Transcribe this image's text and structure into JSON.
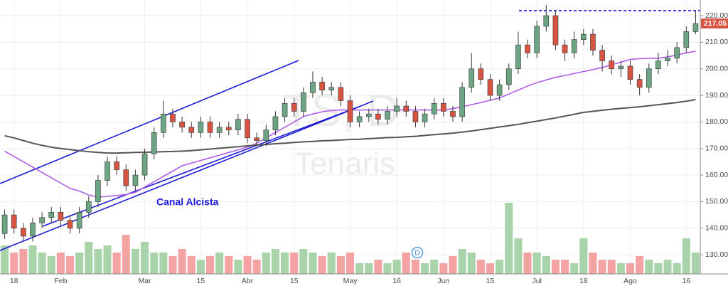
{
  "chart_data": {
    "type": "candlestick",
    "watermark_symbol": "TS, D",
    "watermark_name": "Tenaris",
    "annotation": "Canal Alcista",
    "dividend_label": "D",
    "resistance_level": 221.9,
    "up_color": "#6ba583",
    "down_color": "#d75442",
    "up_volume_color": "#a9d3a9",
    "down_volume_color": "#f4a3a3",
    "ma_short_color": "#b05ee8",
    "ma_long_color": "#555555",
    "grid": true,
    "categories": [
      null,
      "18",
      null,
      null,
      null,
      null,
      "Feb",
      null,
      null,
      null,
      null,
      null,
      null,
      null,
      null,
      "Mar",
      null,
      null,
      null,
      null,
      null,
      "15",
      null,
      null,
      null,
      null,
      "Abr",
      null,
      null,
      null,
      null,
      "15",
      null,
      null,
      null,
      null,
      null,
      "May",
      null,
      null,
      null,
      null,
      "16",
      null,
      null,
      null,
      null,
      "Jun",
      null,
      null,
      null,
      null,
      "15",
      null,
      null,
      null,
      null,
      "Jul",
      null,
      null,
      null,
      null,
      "18",
      null,
      null,
      null,
      null,
      "Ago",
      null,
      null,
      null,
      null,
      null,
      "16",
      null
    ],
    "open": [
      138,
      145,
      140,
      137,
      142,
      144,
      146,
      143,
      140,
      146,
      150,
      158,
      165,
      162,
      156,
      160,
      168,
      176,
      183,
      180,
      178,
      176,
      180,
      176,
      178,
      177,
      181,
      174,
      173,
      177,
      182,
      187,
      184,
      191,
      195,
      192,
      193,
      188,
      180,
      182,
      183,
      181,
      184,
      186,
      184,
      180,
      183,
      187,
      184,
      182,
      193,
      200,
      196,
      190,
      194,
      200,
      209,
      206,
      216,
      220,
      209,
      206,
      211,
      213,
      207,
      203,
      200,
      201,
      196,
      193,
      200,
      203,
      204,
      208,
      214
    ],
    "high": [
      147,
      147,
      142,
      144,
      146,
      148,
      148,
      145,
      148,
      152,
      160,
      167,
      167,
      164,
      162,
      170,
      178,
      188,
      185,
      182,
      180,
      182,
      182,
      180,
      180,
      183,
      183,
      176,
      179,
      184,
      189,
      189,
      193,
      199,
      197,
      195,
      195,
      190,
      184,
      185,
      185,
      186,
      189,
      188,
      186,
      185,
      189,
      189,
      186,
      195,
      206,
      202,
      198,
      196,
      202,
      214,
      211,
      218,
      224,
      222,
      211,
      214,
      215,
      215,
      209,
      205,
      203,
      203,
      198,
      202,
      206,
      207,
      210,
      216,
      222
    ],
    "low": [
      136,
      138,
      135,
      135,
      140,
      142,
      141,
      138,
      138,
      144,
      148,
      156,
      160,
      154,
      154,
      158,
      166,
      174,
      178,
      176,
      174,
      174,
      174,
      174,
      175,
      175,
      172,
      171,
      171,
      175,
      180,
      182,
      182,
      189,
      190,
      190,
      186,
      178,
      178,
      180,
      179,
      179,
      182,
      182,
      178,
      178,
      181,
      182,
      180,
      180,
      191,
      194,
      188,
      188,
      192,
      198,
      204,
      204,
      214,
      207,
      203,
      204,
      209,
      205,
      199,
      198,
      197,
      194,
      190,
      191,
      198,
      201,
      202,
      206,
      213
    ],
    "close": [
      145,
      140,
      137,
      142,
      144,
      146,
      143,
      140,
      146,
      150,
      158,
      165,
      162,
      156,
      160,
      168,
      176,
      183,
      180,
      178,
      176,
      180,
      176,
      178,
      177,
      181,
      174,
      173,
      177,
      182,
      187,
      184,
      191,
      195,
      192,
      193,
      188,
      180,
      182,
      183,
      181,
      184,
      186,
      184,
      180,
      183,
      187,
      184,
      182,
      193,
      200,
      196,
      190,
      194,
      200,
      209,
      206,
      216,
      220,
      209,
      206,
      211,
      213,
      207,
      203,
      200,
      201,
      196,
      193,
      200,
      203,
      204,
      208,
      214,
      217.05
    ],
    "volume": [
      4,
      3,
      3.5,
      4,
      3,
      2.5,
      3,
      2.5,
      3,
      4.5,
      3.5,
      4,
      3,
      5.5,
      3.5,
      4.5,
      3,
      3,
      2.5,
      3.5,
      2.5,
      2,
      2.5,
      3,
      2.5,
      2,
      2.5,
      2,
      3,
      3.5,
      3,
      3,
      3.5,
      3,
      2.5,
      3,
      2.5,
      3,
      1.5,
      1.5,
      2,
      1.5,
      2,
      3,
      2,
      1.5,
      2,
      1.5,
      2.5,
      3.5,
      3,
      2,
      1.5,
      2,
      10,
      5,
      3,
      3,
      2.5,
      2,
      2,
      1.5,
      5,
      3,
      2,
      2,
      1.5,
      1.5,
      2.5,
      2,
      1.5,
      2,
      1.5,
      5,
      3
    ],
    "ma_short": [
      169,
      167,
      165,
      163,
      161,
      159,
      157,
      155,
      154,
      152.5,
      151.7,
      152,
      152.3,
      152.7,
      153.5,
      155.5,
      157.5,
      159.5,
      161.5,
      163.5,
      164.5,
      165.5,
      166.5,
      167.5,
      168.5,
      169.5,
      170.5,
      172,
      174,
      176,
      178,
      180,
      182,
      183,
      183.8,
      184.3,
      184.5,
      184.5,
      184.5,
      184.5,
      184.5,
      184.5,
      184.5,
      184.5,
      184.5,
      184.5,
      184.5,
      184.5,
      185,
      185.7,
      186.5,
      187.3,
      188.2,
      189,
      190.5,
      192,
      193.5,
      194.8,
      195.8,
      196.8,
      197.5,
      198.2,
      199,
      199.7,
      200.5,
      201.5,
      202.5,
      203.5,
      203.8,
      204,
      204,
      204.5,
      205.2,
      206,
      206.6
    ],
    "ma_long": [
      174.8,
      174,
      173,
      172,
      171.2,
      170.5,
      170,
      169.6,
      169.2,
      168.8,
      168.5,
      168.3,
      168.3,
      168.4,
      168.5,
      168.6,
      168.7,
      168.8,
      168.9,
      169,
      169.2,
      169.5,
      169.8,
      170.1,
      170.4,
      170.7,
      171,
      171.3,
      171.5,
      171.8,
      172,
      172.3,
      172.5,
      172.7,
      172.9,
      173,
      173.2,
      173.4,
      173.5,
      173.7,
      173.9,
      174.1,
      174.2,
      174.4,
      174.6,
      174.9,
      175.2,
      175.5,
      175.8,
      176.2,
      176.6,
      177.1,
      177.6,
      178.1,
      178.6,
      179.1,
      179.7,
      180.3,
      180.9,
      181.5,
      182.2,
      182.9,
      183.6,
      184,
      184.4,
      184.8,
      185.1,
      185.4,
      185.7,
      186.1,
      186.5,
      186.9,
      187.3,
      187.8,
      188.4
    ],
    "ylim": [
      122.8,
      225.9
    ],
    "yticks": [
      {
        "value": 130,
        "label": "130.00"
      },
      {
        "value": 140,
        "label": "140.00"
      },
      {
        "value": 150,
        "label": "150.00"
      },
      {
        "value": 160,
        "label": "160.00"
      },
      {
        "value": 170,
        "label": "170.00"
      },
      {
        "value": 180,
        "label": "180.00"
      },
      {
        "value": 190,
        "label": "190.00"
      },
      {
        "value": 200,
        "label": "200.00"
      },
      {
        "value": 210,
        "label": "210.00"
      },
      {
        "value": 220,
        "label": "220.00"
      }
    ]
  }
}
